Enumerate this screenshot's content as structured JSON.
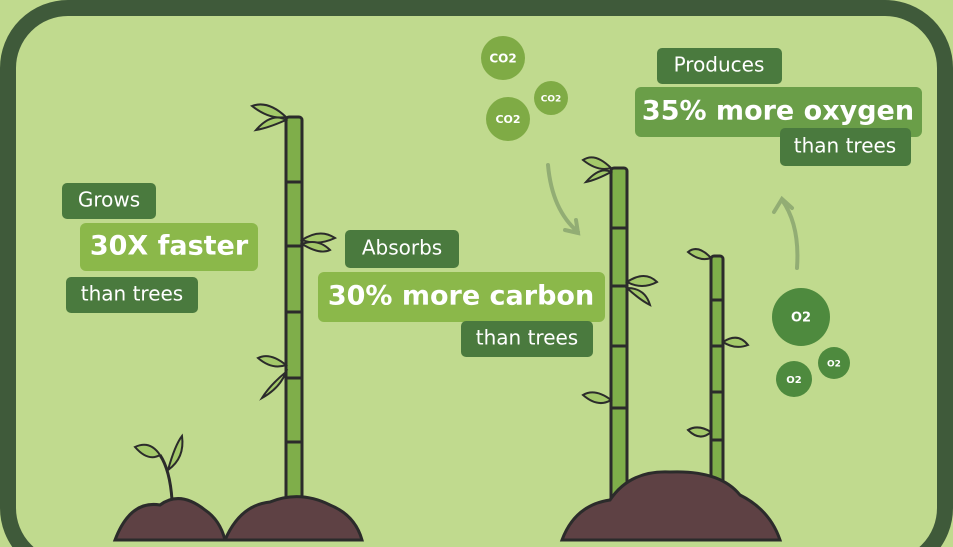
{
  "panels": [
    {
      "verb": "Grows",
      "highlight": "30X faster",
      "suffix": "than trees"
    },
    {
      "verb": "Absorbs",
      "highlight": "30% more carbon",
      "suffix": "than trees"
    },
    {
      "verb": "Produces",
      "highlight": "35% more oxygen",
      "suffix": "than trees"
    }
  ],
  "co2_bubbles": [
    "CO2",
    "CO2",
    "CO2"
  ],
  "o2_bubbles": [
    "O2",
    "O2",
    "O2"
  ]
}
